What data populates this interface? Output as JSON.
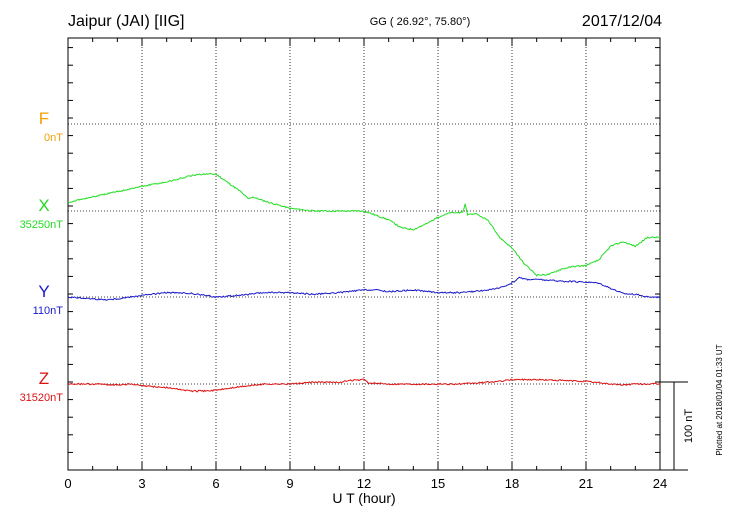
{
  "header": {
    "station": "Jaipur (JAI)  [IIG]",
    "coords": "GG ( 26.92°,  75.80°)",
    "date": "2017/12/04"
  },
  "footer": {
    "plotted": "Plotted at 2018/01/04 01:33 UT"
  },
  "colors": {
    "F": "#f0a000",
    "X": "#22dd22",
    "Y": "#1a1acc",
    "Z": "#dd1111"
  },
  "chart_data": {
    "type": "line",
    "xlabel": "U T (hour)",
    "xlim": [
      0,
      24
    ],
    "xticks": [
      "0",
      "3",
      "6",
      "9",
      "12",
      "15",
      "18",
      "21",
      "24"
    ],
    "scale_bar": "100 nT",
    "grid": true,
    "series": [
      {
        "name": "F",
        "baseline": "0nT",
        "x": [],
        "y": []
      },
      {
        "name": "X",
        "baseline": "35250nT",
        "x": [
          0,
          1,
          2,
          3,
          4,
          5,
          5.5,
          6,
          6.5,
          7,
          7.3,
          7.5,
          8,
          9,
          10,
          11,
          12,
          13,
          13.5,
          14,
          14.5,
          15,
          15.5,
          16,
          16.1,
          16.2,
          16.5,
          17,
          17.5,
          18,
          18.5,
          19,
          19.5,
          20,
          20.5,
          21,
          21.5,
          22,
          22.5,
          23,
          23.5,
          24
        ],
        "y": [
          10,
          16,
          22,
          28,
          33,
          40,
          42,
          42,
          32,
          22,
          14,
          16,
          11,
          3,
          0,
          0,
          0,
          -10,
          -19,
          -21,
          -15,
          -7,
          -2,
          -2,
          8,
          -4,
          -3,
          -10,
          -30,
          -42,
          -60,
          -73,
          -72,
          -66,
          -63,
          -62,
          -56,
          -40,
          -35,
          -40,
          -30,
          -30
        ]
      },
      {
        "name": "Y",
        "baseline": "110nT",
        "x": [
          0,
          1,
          1.5,
          2,
          3,
          4,
          5,
          5.5,
          6,
          7,
          8,
          9,
          10,
          11,
          12,
          12.5,
          13,
          14,
          15,
          16,
          17,
          17.5,
          18,
          18.3,
          18.6,
          19,
          20,
          21,
          21.5,
          22,
          22.5,
          23,
          23.5,
          24
        ],
        "y": [
          0,
          -2,
          -3,
          -2,
          2,
          5,
          4,
          2,
          0,
          2,
          5,
          5,
          3,
          5,
          8,
          8,
          6,
          8,
          5,
          5,
          8,
          10,
          16,
          22,
          20,
          20,
          18,
          17,
          16,
          10,
          4,
          3,
          0,
          0
        ]
      },
      {
        "name": "Z",
        "baseline": "31520nT",
        "x": [
          0,
          1,
          2,
          2.5,
          3,
          4,
          4.5,
          5,
          5.5,
          6,
          6.5,
          7,
          8,
          9,
          10,
          11,
          11.5,
          12,
          12.2,
          13,
          14,
          15,
          16,
          17,
          17.5,
          18,
          19,
          20,
          21,
          22,
          22.5,
          23,
          24
        ],
        "y": [
          0,
          0,
          -1,
          0,
          -2,
          -4,
          -6,
          -8,
          -8,
          -7,
          -5,
          -3,
          0,
          0,
          2,
          2,
          4,
          5,
          1,
          0,
          0,
          0,
          0,
          2,
          3,
          5,
          5,
          4,
          3,
          0,
          -1,
          0,
          0
        ]
      }
    ]
  }
}
